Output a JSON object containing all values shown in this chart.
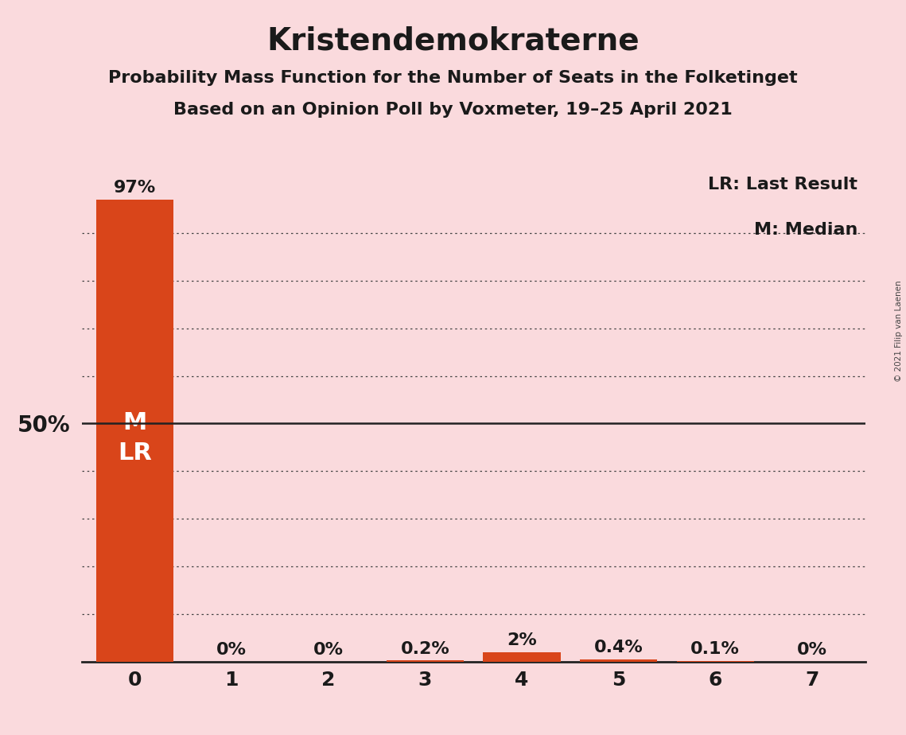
{
  "title": "Kristendemokraterne",
  "subtitle1": "Probability Mass Function for the Number of Seats in the Folketinget",
  "subtitle2": "Based on an Opinion Poll by Voxmeter, 19–25 April 2021",
  "copyright": "© 2021 Filip van Laenen",
  "legend_lr": "LR: Last Result",
  "legend_m": "M: Median",
  "categories": [
    0,
    1,
    2,
    3,
    4,
    5,
    6,
    7
  ],
  "values": [
    97,
    0,
    0,
    0.2,
    2,
    0.4,
    0.1,
    0
  ],
  "bar_labels": [
    "97%",
    "0%",
    "0%",
    "0.2%",
    "2%",
    "0.4%",
    "0.1%",
    "0%"
  ],
  "bar_color": "#D9451A",
  "background_color": "#FADADD",
  "text_color": "#1a1a1a",
  "ylim": [
    0,
    105
  ],
  "ylabel_text": "50%",
  "dotted_gridlines": [
    10,
    20,
    30,
    40,
    60,
    70,
    80,
    90
  ],
  "solid_gridline": 50,
  "median_seat": 0,
  "last_result_seat": 0,
  "title_fontsize": 28,
  "subtitle_fontsize": 16,
  "label_fontsize": 16,
  "tick_fontsize": 18,
  "ylabel_fontsize": 20,
  "legend_fontsize": 16,
  "mlr_fontsize": 22
}
